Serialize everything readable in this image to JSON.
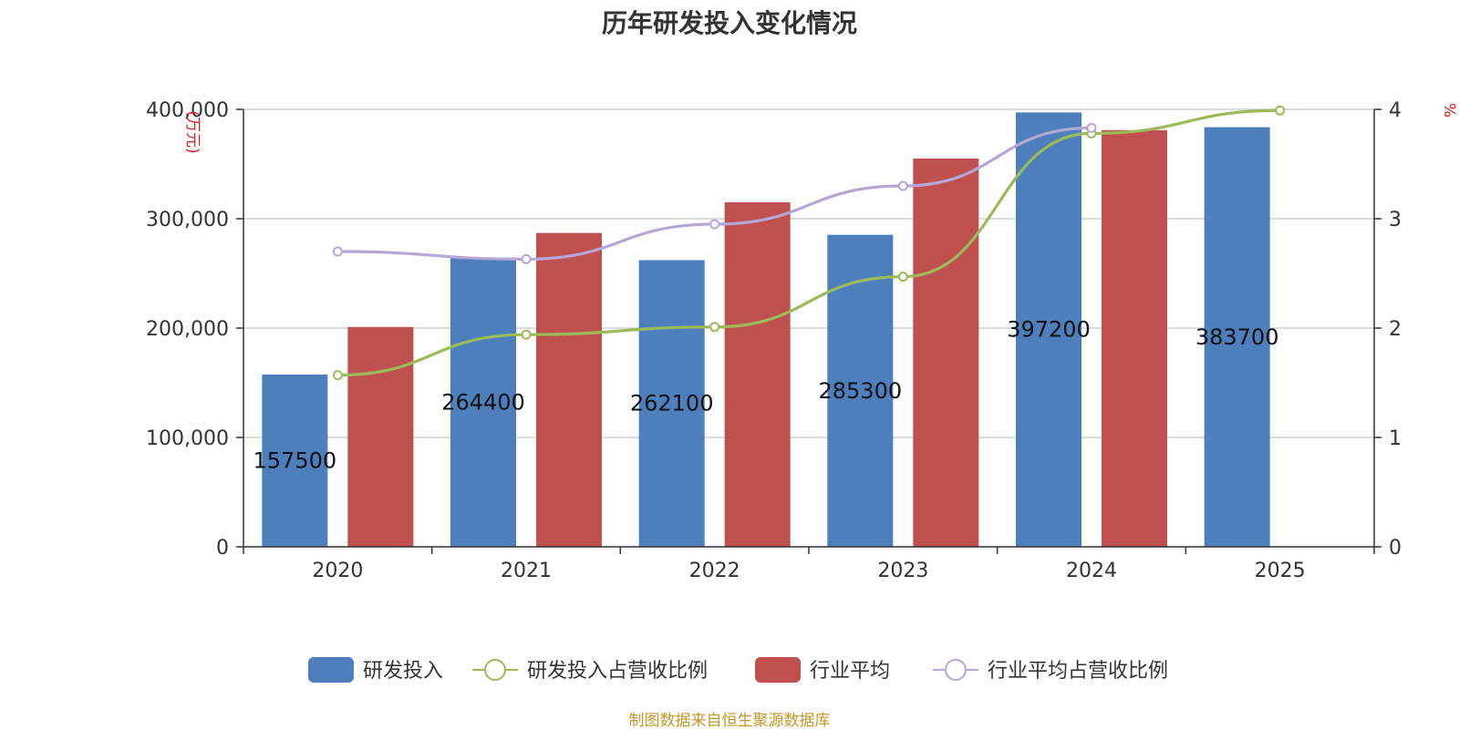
{
  "title": "历年研发投入变化情况",
  "source": "制图数据来自恒生聚源数据库",
  "chart_data": {
    "type": "bar",
    "categories": [
      "2020",
      "2021",
      "2022",
      "2023",
      "2024",
      "2025"
    ],
    "series": [
      {
        "name": "研发投入",
        "kind": "bar",
        "axis": "left",
        "color": "#4e7fbd",
        "values": [
          157500,
          264400,
          262100,
          285300,
          397200,
          383700
        ]
      },
      {
        "name": "行业平均",
        "kind": "bar",
        "axis": "left",
        "color": "#c0504d",
        "values": [
          201000,
          287000,
          315000,
          355000,
          381000,
          null
        ]
      },
      {
        "name": "研发投入占营收比例",
        "kind": "line",
        "axis": "right",
        "color": "#9bbb59",
        "values": [
          1.57,
          1.94,
          2.01,
          2.47,
          3.78,
          3.99
        ]
      },
      {
        "name": "行业平均占营收比例",
        "kind": "line",
        "axis": "right",
        "color": "#b4a7d6",
        "values": [
          2.7,
          2.63,
          2.95,
          3.3,
          3.83,
          null
        ]
      }
    ],
    "data_labels": [
      "157500",
      "264400",
      "262100",
      "285300",
      "397200",
      "383700"
    ],
    "y_left": {
      "label": "(万元)",
      "range": [
        0,
        400000
      ],
      "ticks": [
        0,
        100000,
        200000,
        300000,
        400000
      ],
      "tick_labels": [
        "0",
        "100,000",
        "200,000",
        "300,000",
        "400,000"
      ],
      "label_color": "#e02020"
    },
    "y_right": {
      "label": "%",
      "range": [
        0,
        4
      ],
      "ticks": [
        0,
        1,
        2,
        3,
        4
      ],
      "tick_labels": [
        "0",
        "1",
        "2",
        "3",
        "4"
      ],
      "label_color": "#e02020"
    },
    "legend": [
      "研发投入",
      "研发投入占营收比例",
      "行业平均",
      "行业平均占营收比例"
    ],
    "legend_position": "bottom",
    "grid": true
  }
}
